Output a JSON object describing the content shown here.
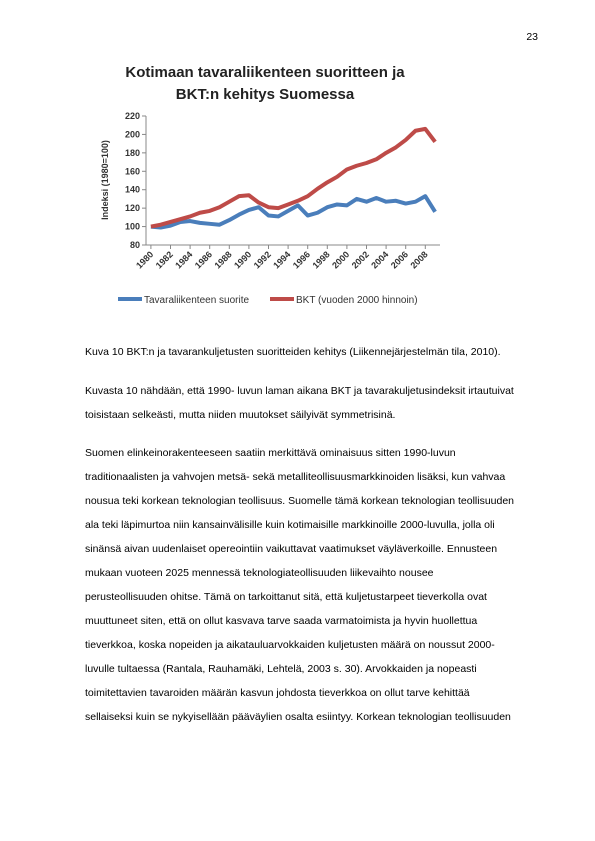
{
  "page_number": "23",
  "chart_data": {
    "type": "line",
    "title": [
      "Kotimaan tavaraliikenteen suoritteen ja",
      "BKT:n kehitys Suomessa"
    ],
    "y_label": "Indeksi (1980=100)",
    "x": [
      1980,
      1981,
      1982,
      1983,
      1984,
      1985,
      1986,
      1987,
      1988,
      1989,
      1990,
      1991,
      1992,
      1993,
      1994,
      1995,
      1996,
      1997,
      1998,
      1999,
      2000,
      2001,
      2002,
      2003,
      2004,
      2005,
      2006,
      2007,
      2008,
      2009
    ],
    "xlim": [
      1979.5,
      2009.5
    ],
    "xticks": [
      1980,
      1982,
      1984,
      1986,
      1988,
      1990,
      1992,
      1994,
      1996,
      1998,
      2000,
      2002,
      2004,
      2006,
      2008
    ],
    "ylim": [
      80,
      220
    ],
    "yticks": [
      80,
      100,
      120,
      140,
      160,
      180,
      200,
      220
    ],
    "grid": false,
    "legend": "bottom",
    "series": [
      {
        "name": "Tavaraliikenteen suorite",
        "color": "#4a7ebb",
        "values": [
          100,
          99,
          101,
          105,
          106,
          104,
          103,
          102,
          107,
          113,
          118,
          121,
          112,
          111,
          117,
          123,
          112,
          115,
          121,
          124,
          123,
          130,
          127,
          131,
          127,
          128,
          125,
          127,
          133,
          116
        ]
      },
      {
        "name": "BKT (vuoden 2000 hinnoin)",
        "color": "#be4b48",
        "values": [
          100,
          102,
          105,
          108,
          111,
          115,
          117,
          121,
          127,
          133,
          134,
          126,
          121,
          120,
          124,
          128,
          133,
          141,
          148,
          154,
          162,
          166,
          169,
          173,
          180,
          186,
          194,
          204,
          206,
          192
        ]
      }
    ]
  },
  "caption": "Kuva 10 BKT:n ja tavarankuljetusten suoritteiden kehitys (Liikennejärjestelmän tila, 2010).",
  "paragraphs": [
    [
      "Kuvasta 10 nähdään, että 1990- luvun laman aikana BKT ja tavarakuljetusindeksit irtautuivat",
      "toisistaan selkeästi, mutta niiden muutokset säilyivät symmetrisinä."
    ],
    [
      "Suomen elinkeinorakenteeseen saatiin merkittävä ominaisuus sitten 1990-luvun",
      "traditionaalisten ja vahvojen metsä- sekä metalliteollisuusmarkkinoiden lisäksi, kun vahvaa",
      "nousua teki korkean teknologian teollisuus. Suomelle tämä korkean teknologian teollisuuden",
      "ala teki läpimurtoa niin kansainvälisille kuin kotimaisille markkinoille 2000-luvulla, jolla oli",
      "sinänsä aivan uudenlaiset opereointiin vaikuttavat vaatimukset väyläverkoille. Ennusteen",
      "mukaan vuoteen 2025 mennessä teknologiateollisuuden liikevaihto nousee",
      "perusteollisuuden ohitse. Tämä on tarkoittanut sitä, että kuljetustarpeet tieverkolla ovat",
      "muuttuneet siten, että on ollut kasvava tarve saada varmatoimista ja hyvin huollettua",
      "tieverkkoa, koska nopeiden ja aikatauluarvokkaiden kuljetusten määrä on noussut 2000-",
      "luvulle tultaessa (Rantala, Rauhamäki, Lehtelä, 2003 s. 30). Arvokkaiden ja nopeasti",
      "toimitettavien tavaroiden määrän kasvun johdosta tieverkkoa on ollut tarve kehittää",
      "sellaiseksi kuin se nykyisellään pääväylien osalta esiintyy. Korkean teknologian teollisuuden"
    ]
  ]
}
